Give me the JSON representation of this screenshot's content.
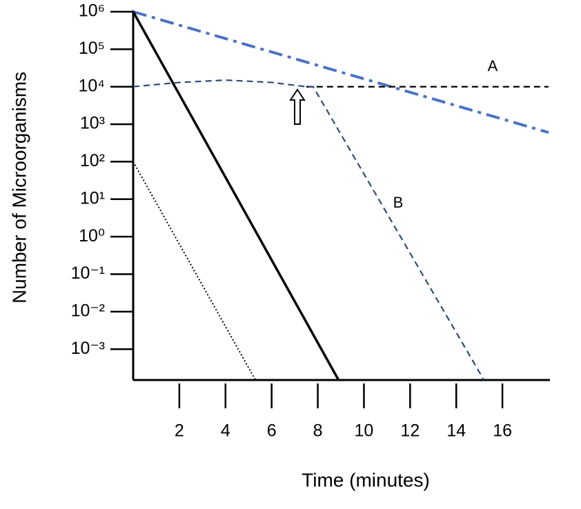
{
  "chart_data": {
    "type": "line",
    "log_y": true,
    "x_label": "Time (minutes)",
    "y_label": "Number of Microorganisms",
    "xlim": [
      0,
      18
    ],
    "xticks": [
      2,
      4,
      6,
      8,
      10,
      12,
      14,
      16
    ],
    "ylim": [
      0.00015,
      1000000
    ],
    "yticks": [
      {
        "value": 1000000,
        "label": "10⁶"
      },
      {
        "value": 100000,
        "label": "10⁵"
      },
      {
        "value": 10000,
        "label": "10⁴"
      },
      {
        "value": 1000,
        "label": "10³"
      },
      {
        "value": 100,
        "label": "10²"
      },
      {
        "value": 10,
        "label": "10¹"
      },
      {
        "value": 1,
        "label": "10⁰"
      },
      {
        "value": 0.1,
        "label": "10⁻¹"
      },
      {
        "value": 0.01,
        "label": "10⁻²"
      },
      {
        "value": 0.001,
        "label": "10⁻³"
      }
    ],
    "series": [
      {
        "color": "#4a72c4",
        "style": "dashdot",
        "x": [
          0,
          18
        ],
        "values": [
          1000000,
          600
        ]
      },
      {
        "color": "#000000",
        "style": "solid",
        "x": [
          0,
          8.9
        ],
        "values": [
          1000000,
          0.00015
        ]
      },
      {
        "color": "#000000",
        "style": "dotted",
        "x": [
          0,
          5.3
        ],
        "values": [
          100,
          0.00015
        ]
      },
      {
        "name": "A",
        "color": "#000000",
        "style": "dashed",
        "x": [
          7.5,
          18
        ],
        "values": [
          10000,
          10000
        ]
      },
      {
        "name": "B",
        "color": "#2f4a7a",
        "style": "dashed",
        "x": [
          0,
          2,
          4,
          6,
          7.5,
          7.8,
          15.2
        ],
        "values": [
          10000,
          13000,
          15000,
          13000,
          10000,
          10000,
          0.00015
        ]
      }
    ]
  }
}
